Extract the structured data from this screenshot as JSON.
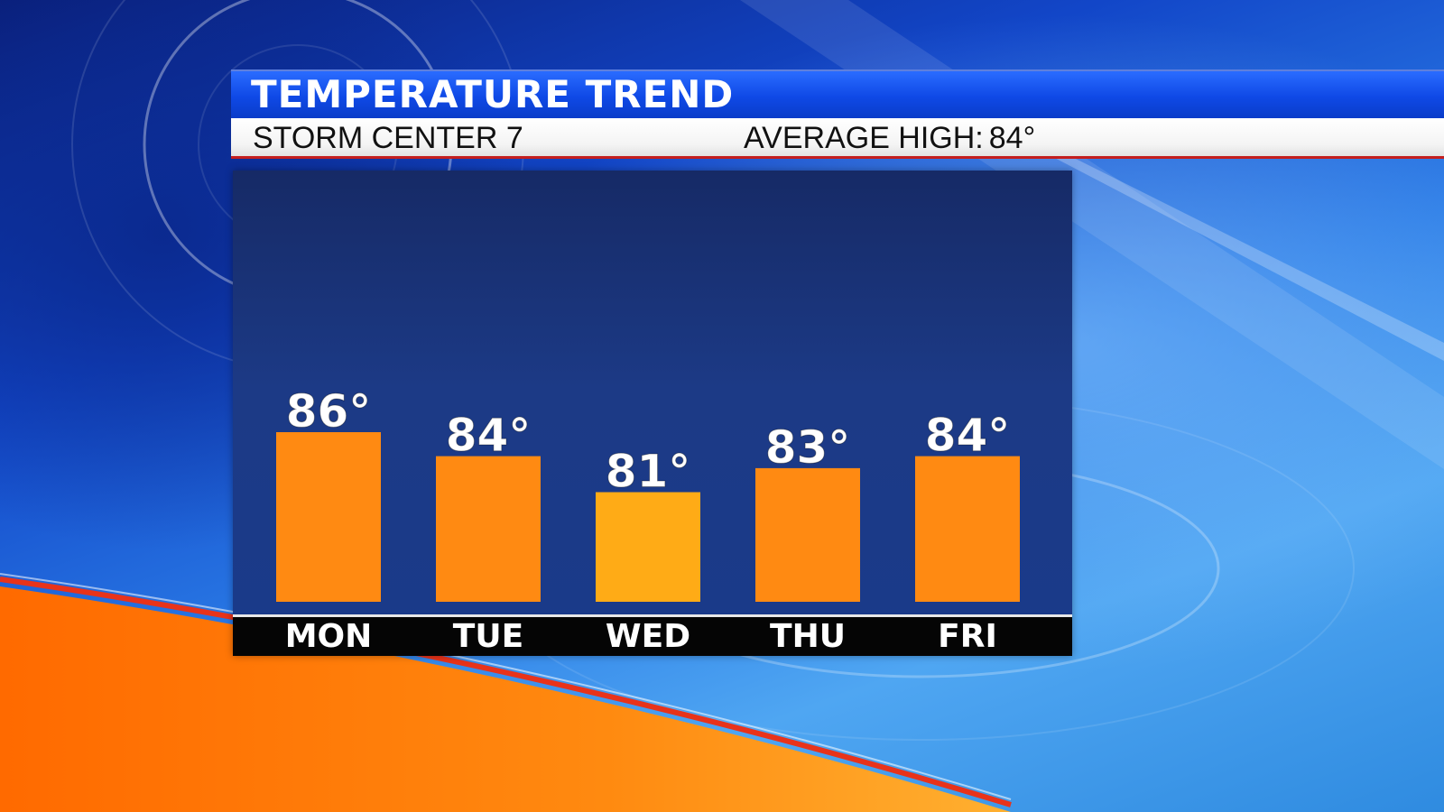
{
  "header": {
    "title": "TEMPERATURE TREND",
    "station": "STORM CENTER 7",
    "average_high_label": "AVERAGE HIGH:",
    "average_high_value": "84°"
  },
  "colors": {
    "bar": "#ff8a12",
    "bar_highlight": "#ffab16",
    "title_bar": "#0f49e6",
    "accent_red": "#c41e1e"
  },
  "chart_data": {
    "type": "bar",
    "categories": [
      "MON",
      "TUE",
      "WED",
      "THU",
      "FRI"
    ],
    "values": [
      86,
      84,
      81,
      83,
      84
    ],
    "value_labels": [
      "86°",
      "84°",
      "81°",
      "83°",
      "84°"
    ],
    "title": "TEMPERATURE TREND",
    "xlabel": "",
    "ylabel": "",
    "grid": false,
    "legend": "none"
  }
}
